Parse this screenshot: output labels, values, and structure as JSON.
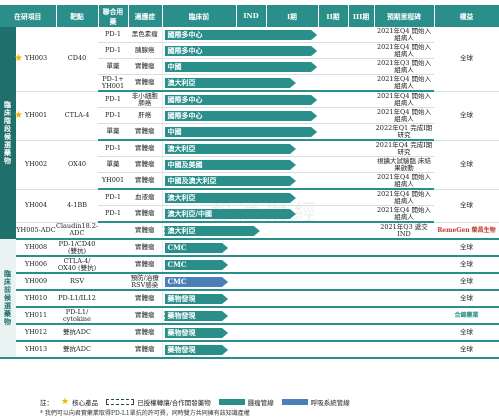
{
  "headers": {
    "item": "在研項目",
    "target": "靶點",
    "combo": "聯合用藥",
    "indication": "適應症",
    "preclinical": "臨床前",
    "ind": "IND",
    "p1": "I期",
    "p2": "II期",
    "p3": "III期",
    "milestone": "預期里程碑",
    "rights": "權益"
  },
  "groups": {
    "clinical": "臨床階段候選藥物",
    "preclinical": "臨床前候選藥物"
  },
  "rows": [
    {
      "item": "YH003",
      "star": true,
      "target": "CD40",
      "combo": "PD-1",
      "ind": "黑色素瘤",
      "bar": "國際多中心",
      "type": "long",
      "len": 0.72,
      "ms": "2021年Q4 開始入組病人",
      "rights": "全球",
      "colors": "#2a8f8b"
    },
    {
      "combo": "PD-1",
      "ind": "胰腺癌",
      "bar": "國際多中心",
      "type": "long",
      "len": 0.72,
      "ms": "2021年Q4 開始入組病人"
    },
    {
      "combo": "單藥",
      "ind": "實體瘤",
      "bar": "中國",
      "type": "long",
      "len": 0.72,
      "ms": "2021年Q3 開始入組病人"
    },
    {
      "combo": "PD-1+ YH001",
      "ind": "實體瘤",
      "bar": "澳大利亞",
      "type": "long",
      "len": 0.62,
      "ms": "2021年Q4 開始入組病人"
    },
    {
      "item": "YH001",
      "star": true,
      "target": "CTLA-4",
      "combo": "PD-1",
      "ind": "非小細胞 肺癌",
      "bar": "國際多中心",
      "type": "long",
      "len": 0.72,
      "ms": "2021年Q4 開始入組病人",
      "rights": "全球"
    },
    {
      "combo": "PD-1",
      "ind": "肝癌",
      "bar": "國際多中心",
      "type": "long",
      "len": 0.72,
      "ms": "2021年Q4 開始入組病人"
    },
    {
      "combo": "單藥",
      "ind": "實體瘤",
      "bar": "中國",
      "type": "long",
      "len": 0.72,
      "ms": "2022年Q1 完成I期研究",
      "sep": true
    },
    {
      "item": "YH002",
      "target": "OX40",
      "combo": "PD-1",
      "ind": "實體瘤",
      "bar": "澳大利亞",
      "type": "long",
      "len": 0.62,
      "ms": "2021年Q4 完成I期研究",
      "rights": "全球"
    },
    {
      "combo": "單藥",
      "ind": "實體瘤",
      "bar": "中國及美國",
      "type": "long",
      "len": 0.62,
      "ms": "視擴大試驗臨 床結果啟動"
    },
    {
      "combo": "YH001",
      "ind": "實體瘤",
      "bar": "中國及澳大利亞",
      "type": "long",
      "len": 0.62,
      "ms": "2021年Q4 開始入組病人",
      "sep": true
    },
    {
      "item": "YH004",
      "target": "4-1BB",
      "combo": "PD-1",
      "ind": "血液瘤",
      "bar": "澳大利亞",
      "type": "long",
      "len": 0.62,
      "ms": "2021年Q4 開始入組病人",
      "rights": "全球"
    },
    {
      "combo": "PD-1",
      "ind": "實體瘤",
      "bar": "澳大利亞/中國",
      "type": "long",
      "len": 0.62,
      "ms": "2021年Q4 開始入組病人",
      "sep": true
    },
    {
      "item": "YH005-ADC",
      "target": "Claudin18.2-ADC",
      "combo": "",
      "ind": "實體瘤",
      "bar": "澳大利亞",
      "type": "dash",
      "len": 0.45,
      "ms": "2021年Q3 遞交IND",
      "logo": "RemeGen 榮昌生物",
      "sep": true
    },
    {
      "item": "YH008",
      "target": "PD-1/CD40 (雙抗)",
      "combo": "",
      "ind": "實體瘤",
      "bar": "CMC",
      "type": "long",
      "len": 0.3,
      "ms": "",
      "rights": "全球",
      "g2": true
    },
    {
      "item": "YH006",
      "target": "CTLA-4/ OX40 (雙抗)",
      "combo": "",
      "ind": "實體瘤",
      "bar": "CMC",
      "type": "long",
      "len": 0.3,
      "ms": "",
      "rights": "全球"
    },
    {
      "item": "YH009",
      "target": "RSV",
      "combo": "",
      "ind": "預防/治療 RSV感染",
      "bar": "CMC",
      "type": "blue",
      "len": 0.3,
      "ms": "",
      "rights": "全球"
    },
    {
      "item": "YH010",
      "target": "PD-L1/IL12",
      "combo": "",
      "ind": "實體瘤",
      "bar": "藥物發現",
      "type": "long",
      "len": 0.3,
      "ms": "",
      "rights": "全球"
    },
    {
      "item": "YH011",
      "target": "PD-L1/ cytokine",
      "combo": "",
      "ind": "實體瘤",
      "bar": "藥物發現",
      "type": "dash",
      "len": 0.3,
      "ms": "",
      "logo2": "合錦藥業"
    },
    {
      "item": "YH012",
      "target": "雙抗ADC",
      "combo": "",
      "ind": "實體瘤",
      "bar": "藥物發現",
      "type": "long",
      "len": 0.3,
      "ms": "",
      "rights": "全球"
    },
    {
      "item": "YH013",
      "target": "雙抗ADC",
      "combo": "",
      "ind": "實體瘤",
      "bar": "藥物發現",
      "type": "long",
      "len": 0.3,
      "ms": "",
      "rights": "全球"
    }
  ],
  "legend": {
    "note_label": "註：",
    "star_label": "核心產品",
    "license_label": "已授權轉讓/合作開發藥物",
    "oncology_label": "腫瘤管線",
    "respiratory_label": "呼吸系統管線"
  },
  "footnote": "* 我們可以向君實藥業取得PD-L1單抗的許可費，同時雙方共同擁有該知識產權",
  "watermark": "智通財經"
}
